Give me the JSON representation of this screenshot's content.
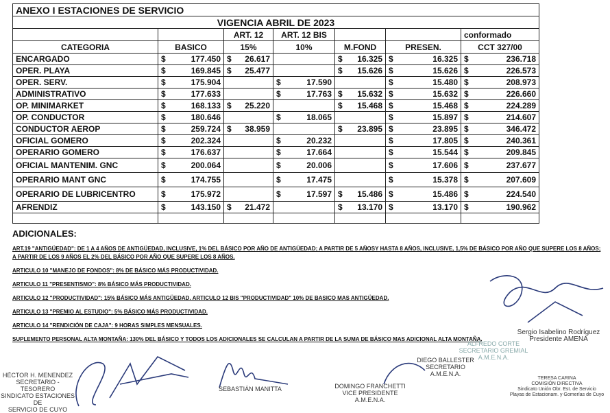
{
  "header": {
    "title": "ANEXO I ESTACIONES DE SERVICIO",
    "subtitle": "VIGENCIA ABRIL  DE 2023"
  },
  "table": {
    "currency": "$",
    "group_headers": [
      "ART. 12",
      "ART. 12 BIS",
      "conformado"
    ],
    "columns": [
      "CATEGORIA",
      "BASICO",
      "15%",
      "10%",
      "M.FOND",
      "PRESEN.",
      "CCT 327/00"
    ],
    "rows": [
      [
        "ENCARGADO",
        "177.450",
        "26.617",
        null,
        "16.325",
        "16.325",
        "236.718"
      ],
      [
        "OPER. PLAYA",
        "169.845",
        "25.477",
        null,
        "15.626",
        "15.626",
        "226.573"
      ],
      [
        "OPER. SERV.",
        "175.904",
        null,
        "17.590",
        null,
        "15.480",
        "208.973"
      ],
      [
        "ADMINISTRATIVO",
        "177.633",
        null,
        "17.763",
        "15.632",
        "15.632",
        "226.660"
      ],
      [
        "OP. MINIMARKET",
        "168.133",
        "25.220",
        null,
        "15.468",
        "15.468",
        "224.289"
      ],
      [
        "OP. CONDUCTOR",
        "180.646",
        null,
        "18.065",
        null,
        "15.897",
        "214.607"
      ],
      [
        "CONDUCTOR AEROP",
        "259.724",
        "38.959",
        null,
        "23.895",
        "23.895",
        "346.472"
      ],
      [
        "OFICIAL GOMERO",
        "202.324",
        null,
        "20.232",
        null,
        "17.805",
        "240.361"
      ],
      [
        "OPERARIO GOMERO",
        "176.637",
        null,
        "17.664",
        null,
        "15.544",
        "209.845"
      ],
      [
        "OFICIAL MANTENIM. GNC",
        "200.064",
        null,
        "20.006",
        null,
        "17.606",
        "237.677"
      ],
      [
        "OPERARIO MANT GNC",
        "174.755",
        null,
        "17.475",
        null,
        "15.378",
        "207.609"
      ],
      [
        "OPERARIO DE LUBRICENTRO",
        "175.972",
        null,
        "17.597",
        "15.486",
        "15.486",
        "224.540"
      ],
      [
        "AFRENDIZ",
        "143.150",
        "21.472",
        null,
        "13.170",
        "13.170",
        "190.962"
      ]
    ]
  },
  "additionals": {
    "title": "ADICIONALES:",
    "items": [
      "ART.19 \"ANTIGÜEDAD\": DE 1 A 4 AÑOS DE ANTIGÜEDAD, INCLUSIVE, 1% DEL BÁSICO POR AÑO DE ANTIGÜEDAD;  A PARTIR DE 5 AÑOSY HASTA 8 AÑOS, INCLUSIVE, 1,5% DE BÁSICO POR AÑO QUE SUPERE LOS 8 AÑOS;  A PARTIR DE  LOS 9 AÑOS EL 2% DEL BÁSICO POR AÑO QUE SUPERE LOS 8 AÑOS.",
      "ARTICULO 10 \"MANEJO DE FONDOS\": 8% DE BÁSICO MÁS PRODUCTIVIDAD.",
      "ARTICULO 11 \"PRESENTISMO\": 8% BÁSICO MÁS PRODUCTIVIDAD.",
      "ARTICULO 12 \"PRODUCTIVIDAD\": 15% BÁSICO MÁS ANTIGÜEDAD. ARTICULO 12 BIS \"PRODUCTIVIDAD\" 10% DE BASICO MAS ANTIGÜEDAD.",
      "ARTICULO 13 \"PREMIO AL ESTUDIO\": 5% BÁSICO MÁS PRODUCTIVIDAD.",
      "ARTICULO 14 \"RENDICIÓN DE CAJA\": 9 HORAS SIMPLES MENSUALES.",
      "SUPLEMENTO PERSONAL ALTA MONTAÑA: 130% DEL BÁSICO Y TODOS LOS ADICIONALES SE CALCULAN A PARTIR DE LA SUMA DE BÁSICO MAS ADICIONAL ALTA MONTAÑA."
    ]
  },
  "signatures": [
    {
      "lines": [
        "HÉCTOR H. MENENDEZ",
        "SECRETARIO - TESORERO",
        "SINDICATO ESTACIONES DE",
        "SERVICIO DE CUYO"
      ]
    },
    {
      "lines": [
        "SEBASTIÁN MANITTA"
      ]
    },
    {
      "lines": [
        "DOMINGO FRANCHETTI",
        "VICE PRESIDENTE",
        "A.M.E.N.A."
      ]
    },
    {
      "lines": [
        "DIEGO BALLESTER",
        "SECRETARIO",
        "A.M.E.N.A."
      ]
    },
    {
      "lines": [
        "ALFREDO CORTE",
        "SECRETARIO GREMIAL",
        "A.M.E.N.A."
      ]
    },
    {
      "lines": [
        "Sergio Isabelino Rodríguez",
        "Presidente AMENA"
      ]
    },
    {
      "lines": [
        "TERESA CARINA",
        "COMISIÓN DIRECTIVA",
        "Sindicato Unión Obr. Est. de Servicio",
        "Playas de Estacionam. y Gomerías de Cuyo"
      ]
    }
  ]
}
